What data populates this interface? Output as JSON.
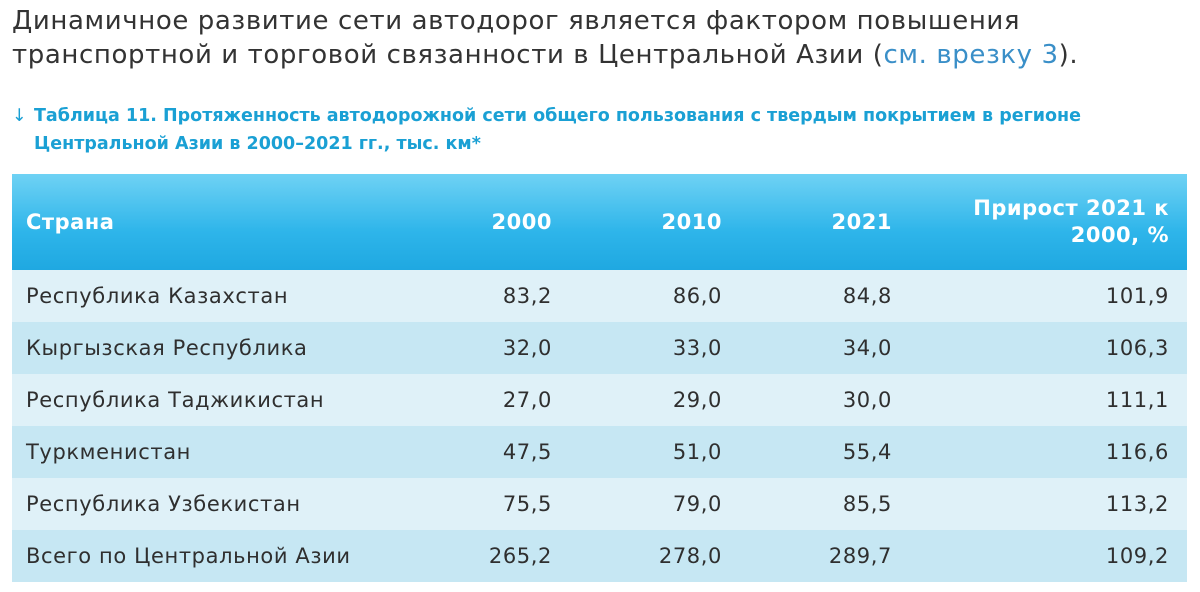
{
  "intro": {
    "text_before": "Динамичное развитие сети автодорог является фактором повышения транспортной и торговой связанности в Центральной Азии (",
    "link": "см. врезку 3",
    "text_after": ")."
  },
  "caption": {
    "arrow": "↓",
    "line1": "Таблица 11. Протяженность автодорожной сети общего пользования с твердым покрытием в регионе",
    "line2": "Центральной Азии в 2000–2021 гг., тыс. км*"
  },
  "table": {
    "headers": [
      "Страна",
      "2000",
      "2010",
      "2021",
      "Прирост 2021 к 2000, %"
    ],
    "rows": [
      {
        "country": "Республика Казахстан",
        "y2000": "83,2",
        "y2010": "86,0",
        "y2021": "84,8",
        "growth": "101,9"
      },
      {
        "country": "Кыргызская Республика",
        "y2000": "32,0",
        "y2010": "33,0",
        "y2021": "34,0",
        "growth": "106,3"
      },
      {
        "country": "Республика Таджикистан",
        "y2000": "27,0",
        "y2010": "29,0",
        "y2021": "30,0",
        "growth": "111,1"
      },
      {
        "country": "Туркменистан",
        "y2000": "47,5",
        "y2010": "51,0",
        "y2021": "55,4",
        "growth": "116,6"
      },
      {
        "country": "Республика Узбекистан",
        "y2000": "75,5",
        "y2010": "79,0",
        "y2021": "85,5",
        "growth": "113,2"
      },
      {
        "country": "Всего по Центральной Азии",
        "y2000": "265,2",
        "y2010": "278,0",
        "y2021": "289,7",
        "growth": "109,2"
      }
    ]
  },
  "colors": {
    "accent": "#1aa0d4",
    "link": "#3a8fc8",
    "header_top": "#6fd2f4",
    "header_bottom": "#1fa8e1",
    "row_light": "#dff1f8",
    "row_dark": "#c6e7f3"
  }
}
